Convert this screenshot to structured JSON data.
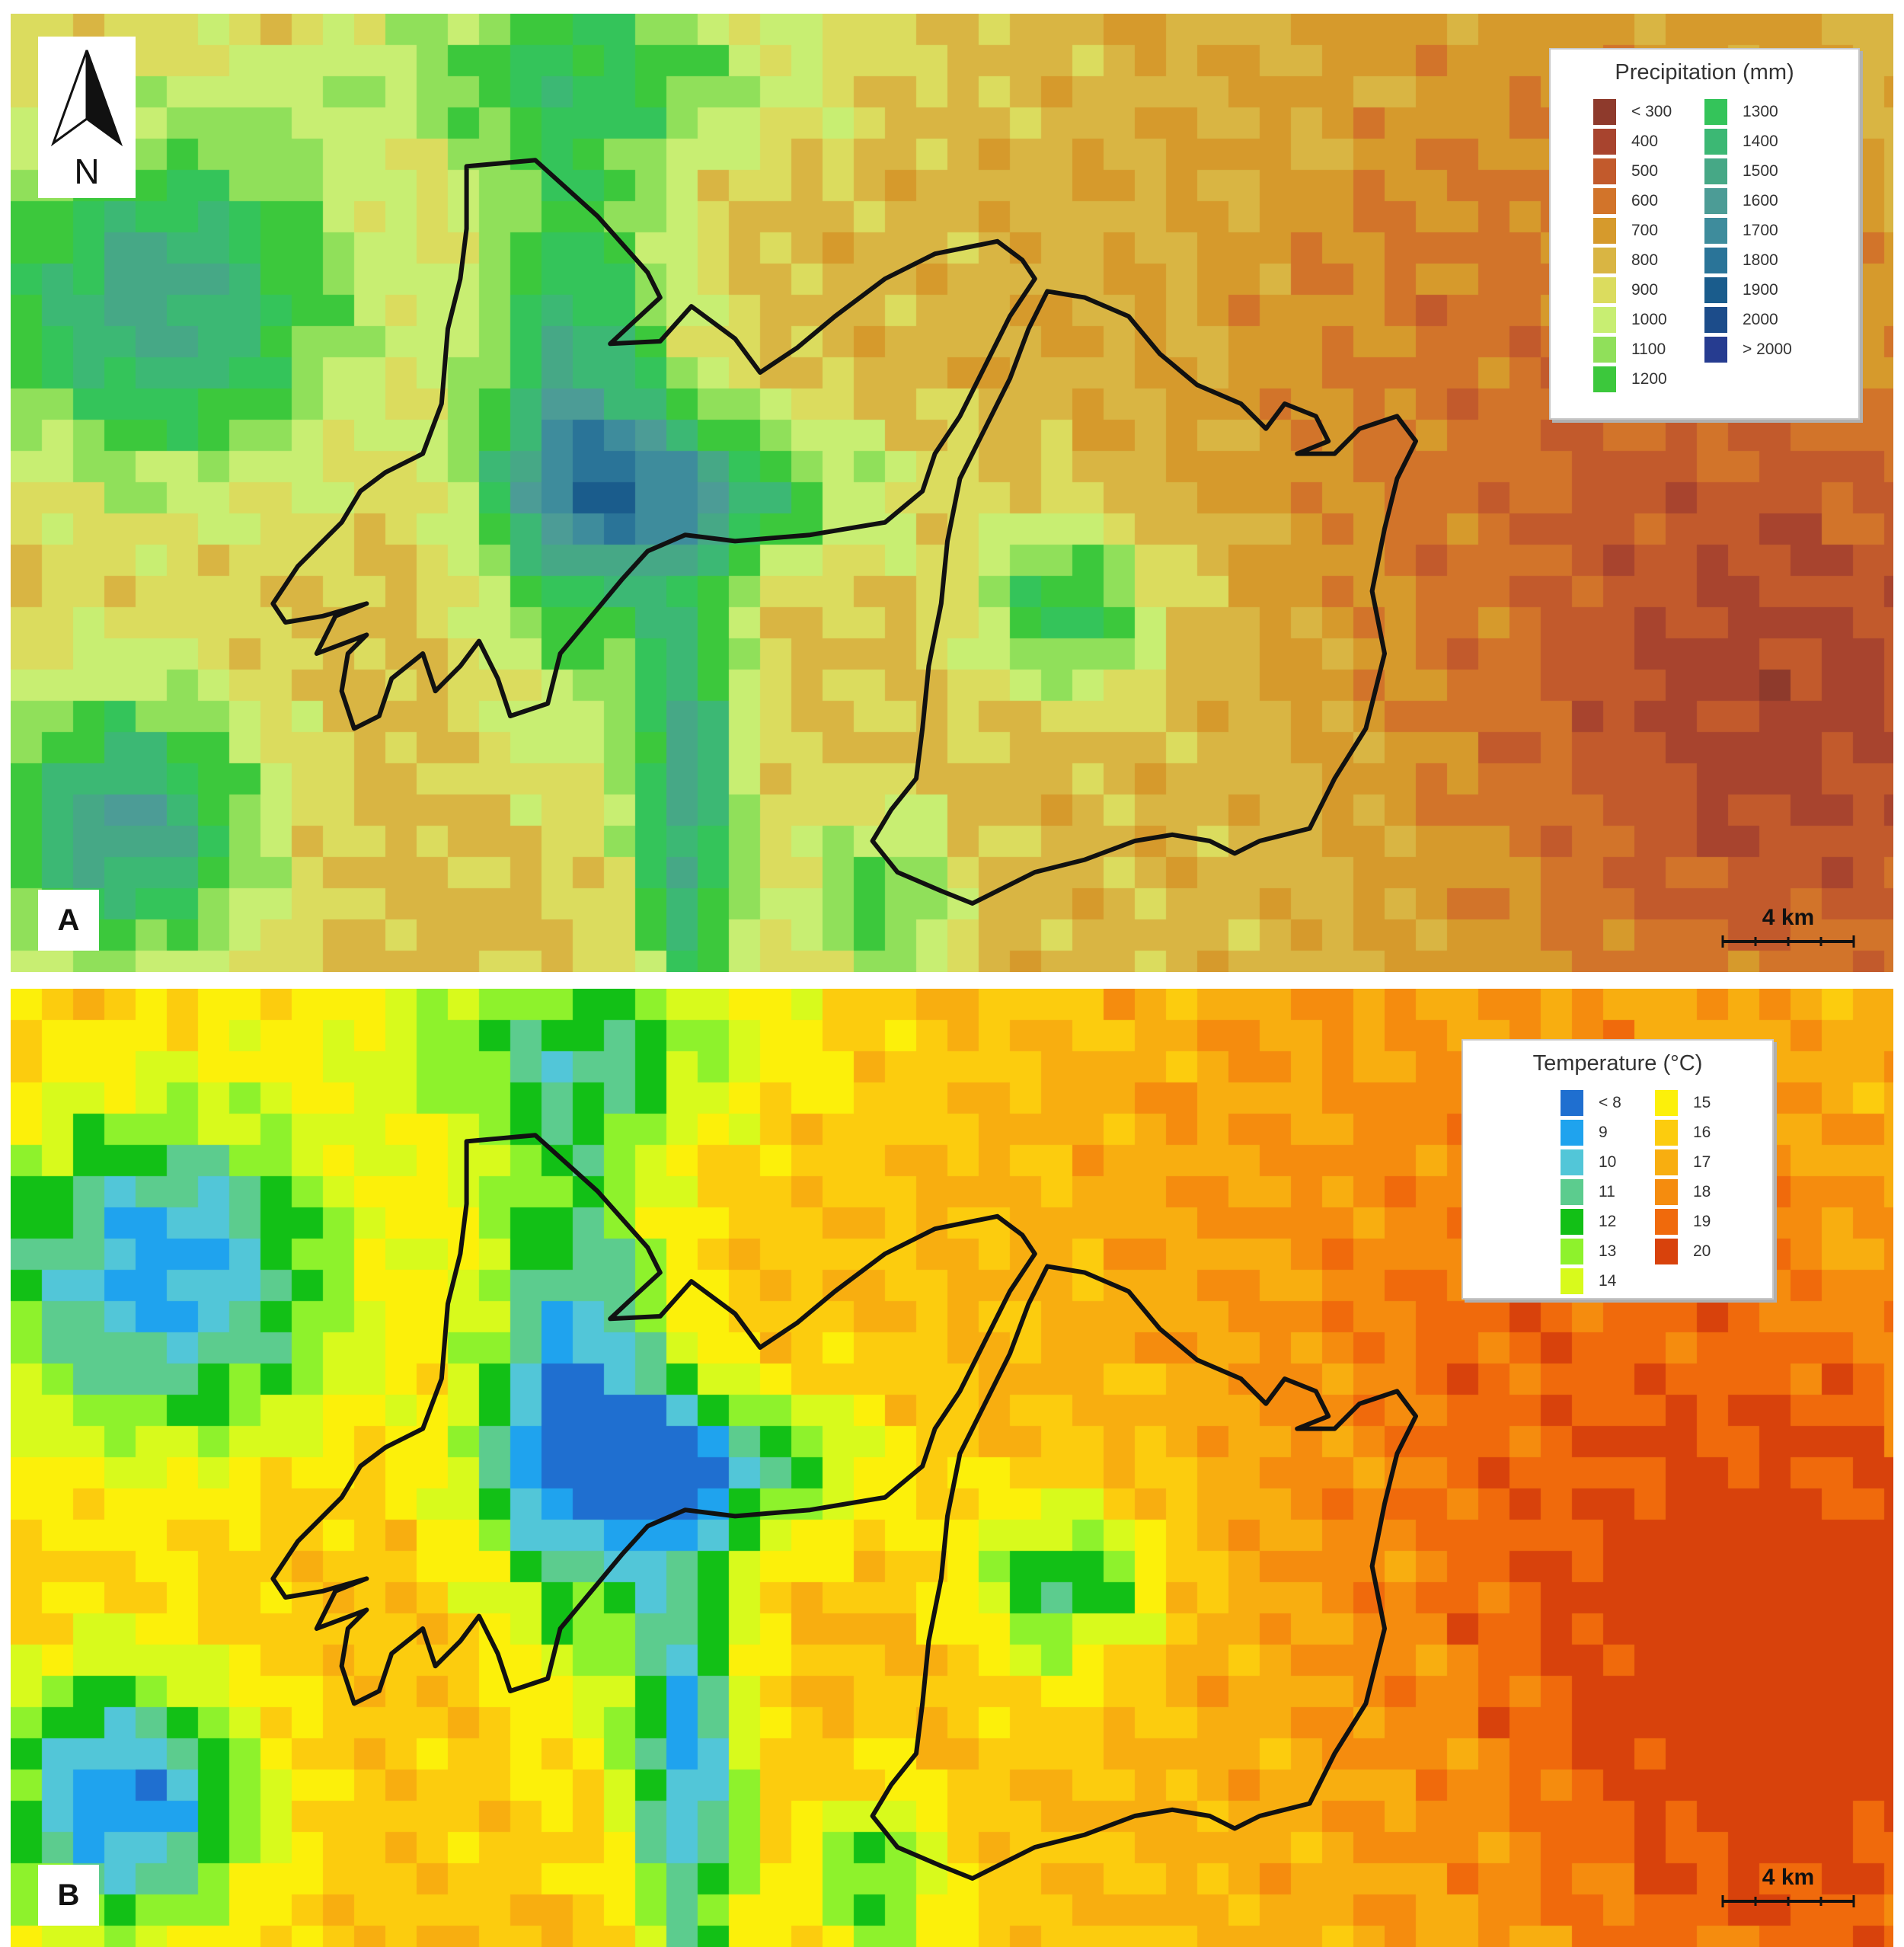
{
  "panels": [
    {
      "letter": "A",
      "legend": {
        "title": "Precipitation (mm)",
        "items": [
          {
            "label": "< 300",
            "color": "#8e3a2c"
          },
          {
            "label": "400",
            "color": "#a8442e"
          },
          {
            "label": "500",
            "color": "#c25a2c"
          },
          {
            "label": "600",
            "color": "#d2742a"
          },
          {
            "label": "700",
            "color": "#d69a2c"
          },
          {
            "label": "800",
            "color": "#d9b543"
          },
          {
            "label": "900",
            "color": "#dbdc5e"
          },
          {
            "label": "1000",
            "color": "#c8ee72"
          },
          {
            "label": "1100",
            "color": "#90e05a"
          },
          {
            "label": "1200",
            "color": "#3cc83c"
          },
          {
            "label": "1300",
            "color": "#34c45a"
          },
          {
            "label": "1400",
            "color": "#3cb874"
          },
          {
            "label": "1500",
            "color": "#46a886"
          },
          {
            "label": "1600",
            "color": "#4c9c96"
          },
          {
            "label": "1700",
            "color": "#3e8c9c"
          },
          {
            "label": "1800",
            "color": "#2a7498"
          },
          {
            "label": "1900",
            "color": "#1a5c8c"
          },
          {
            "label": "2000",
            "color": "#1c4c8a"
          },
          {
            "label": "> 2000",
            "color": "#263c90"
          }
        ]
      },
      "scale_label": "4 km"
    },
    {
      "letter": "B",
      "legend": {
        "title": "Temperature (°C)",
        "items": [
          {
            "label": "< 8",
            "color": "#1f6fd0"
          },
          {
            "label": "9",
            "color": "#1fa3ee"
          },
          {
            "label": "10",
            "color": "#52c6d8"
          },
          {
            "label": "11",
            "color": "#5ccc8e"
          },
          {
            "label": "12",
            "color": "#12c016"
          },
          {
            "label": "13",
            "color": "#8ef22c"
          },
          {
            "label": "14",
            "color": "#d8fa1c"
          },
          {
            "label": "15",
            "color": "#fcf00a"
          },
          {
            "label": "16",
            "color": "#fccc0e"
          },
          {
            "label": "17",
            "color": "#f8ae10"
          },
          {
            "label": "18",
            "color": "#f58c0e"
          },
          {
            "label": "19",
            "color": "#f06a0c"
          },
          {
            "label": "20",
            "color": "#d8420c"
          }
        ]
      },
      "scale_label": "4 km"
    }
  ],
  "north_arrow_label": "N"
}
